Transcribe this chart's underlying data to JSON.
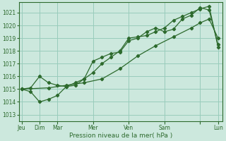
{
  "bg_color": "#cce8dd",
  "grid_color": "#99ccbb",
  "line_color": "#2d6a2d",
  "marker_color": "#2d6a2d",
  "xlabel": "Pression niveau de la mer( hPa )",
  "xlabel_color": "#2d6a2d",
  "tick_color": "#2d6a2d",
  "ylim": [
    1012.5,
    1021.8
  ],
  "yticks": [
    1013,
    1014,
    1015,
    1016,
    1017,
    1018,
    1019,
    1020,
    1021
  ],
  "series1_x": [
    0,
    1,
    2,
    3,
    4,
    5,
    6,
    7,
    8,
    9,
    10,
    11,
    12,
    13,
    14,
    15,
    16,
    17,
    18,
    19,
    20,
    21,
    22
  ],
  "series1_y": [
    1015.0,
    1014.8,
    1014.0,
    1014.2,
    1014.5,
    1015.2,
    1015.3,
    1015.8,
    1016.3,
    1017.0,
    1017.5,
    1018.0,
    1019.0,
    1019.1,
    1019.2,
    1019.5,
    1019.8,
    1020.4,
    1020.7,
    1021.0,
    1021.3,
    1021.5,
    1018.3
  ],
  "series2_x": [
    0,
    1,
    2,
    3,
    4,
    5,
    6,
    7,
    8,
    9,
    10,
    11,
    12,
    13,
    14,
    15,
    16,
    17,
    18,
    19,
    20,
    21,
    22
  ],
  "series2_y": [
    1015.0,
    1015.1,
    1016.0,
    1015.5,
    1015.3,
    1015.2,
    1015.5,
    1015.8,
    1017.2,
    1017.5,
    1017.8,
    1017.9,
    1018.8,
    1019.0,
    1019.5,
    1019.8,
    1019.5,
    1019.7,
    1020.5,
    1020.8,
    1021.4,
    1021.2,
    1018.5
  ],
  "series3_x": [
    0,
    3,
    5,
    7,
    9,
    11,
    13,
    15,
    17,
    19,
    20,
    21,
    22
  ],
  "series3_y": [
    1015.0,
    1015.1,
    1015.3,
    1015.5,
    1015.8,
    1016.6,
    1017.6,
    1018.4,
    1019.1,
    1019.8,
    1020.2,
    1020.5,
    1019.0
  ],
  "day_tick_positions": [
    0,
    2,
    4,
    8,
    12,
    16,
    20,
    22
  ],
  "day_tick_labels": [
    "Jeu",
    "Dim",
    "Mar",
    "Mer",
    "Ven",
    "Sam",
    "",
    "Lun"
  ],
  "xlim": [
    -0.3,
    22.5
  ]
}
